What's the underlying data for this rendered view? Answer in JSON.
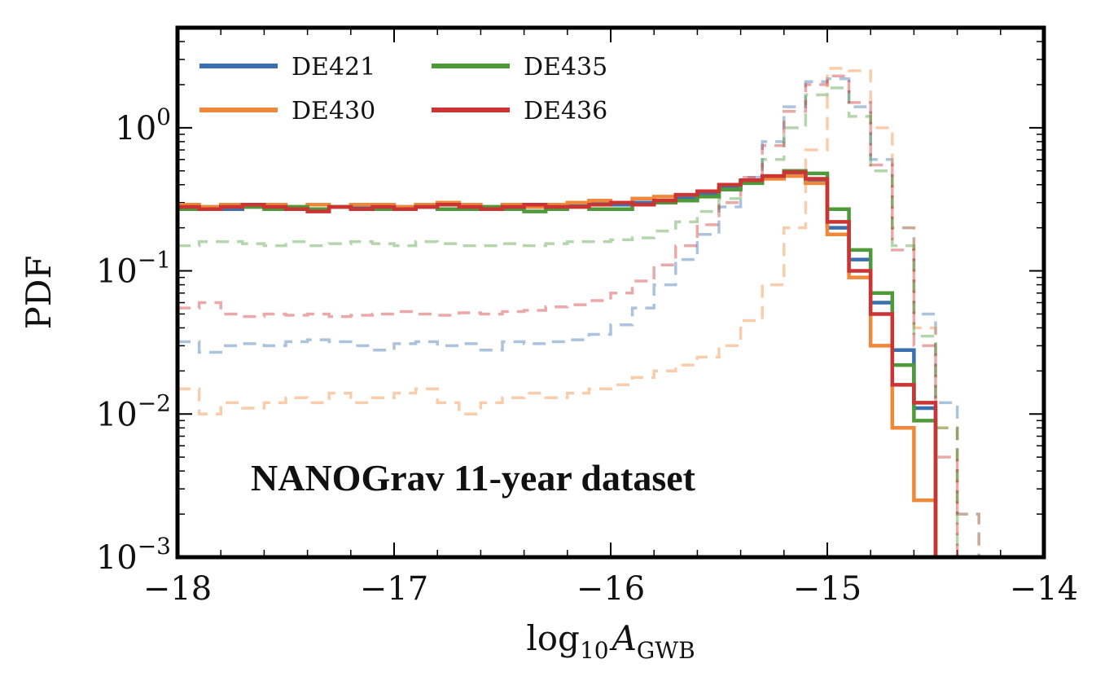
{
  "chart_data": {
    "type": "line",
    "xlabel": "log",
    "xlabel_sub": "10",
    "xlabel_var": "A",
    "xlabel_var_sub": "GWB",
    "ylabel": "PDF",
    "xlim": [
      -18,
      -14
    ],
    "ylim": [
      0.001,
      5
    ],
    "yscale": "log",
    "xticks": [
      -18,
      -17,
      -16,
      -15,
      -14
    ],
    "xtick_labels": [
      "−18",
      "−17",
      "−16",
      "−15",
      "−14"
    ],
    "yticks": [
      {
        "value": 1,
        "base": "10",
        "exp": "0"
      },
      {
        "value": 0.1,
        "base": "10",
        "exp": "−1"
      },
      {
        "value": 0.01,
        "base": "10",
        "exp": "−2"
      },
      {
        "value": 0.001,
        "base": "10",
        "exp": "−3"
      }
    ],
    "annotation": "NANOGrav 11-year dataset",
    "legend_position": "top-left",
    "grid": false,
    "bin_width": 0.1,
    "series": [
      {
        "name": "DE421",
        "color": "#3a6fb0",
        "style": "solid",
        "x": [
          -18.0,
          -17.9,
          -17.8,
          -17.7,
          -17.6,
          -17.5,
          -17.4,
          -17.3,
          -17.2,
          -17.1,
          -17.0,
          -16.9,
          -16.8,
          -16.7,
          -16.6,
          -16.5,
          -16.4,
          -16.3,
          -16.2,
          -16.1,
          -16.0,
          -15.9,
          -15.8,
          -15.7,
          -15.6,
          -15.5,
          -15.4,
          -15.3,
          -15.2,
          -15.1,
          -15.0,
          -14.9,
          -14.8,
          -14.7,
          -14.6,
          -14.5
        ],
        "y": [
          0.28,
          0.28,
          0.27,
          0.28,
          0.28,
          0.28,
          0.27,
          0.28,
          0.28,
          0.27,
          0.28,
          0.28,
          0.27,
          0.28,
          0.28,
          0.28,
          0.28,
          0.29,
          0.29,
          0.3,
          0.29,
          0.3,
          0.31,
          0.32,
          0.34,
          0.38,
          0.42,
          0.45,
          0.48,
          0.42,
          0.2,
          0.12,
          0.06,
          0.028,
          0.011,
          0.001
        ]
      },
      {
        "name": "DE430",
        "color": "#f0883a",
        "style": "solid",
        "x": [
          -18.0,
          -17.9,
          -17.8,
          -17.7,
          -17.6,
          -17.5,
          -17.4,
          -17.3,
          -17.2,
          -17.1,
          -17.0,
          -16.9,
          -16.8,
          -16.7,
          -16.6,
          -16.5,
          -16.4,
          -16.3,
          -16.2,
          -16.1,
          -16.0,
          -15.9,
          -15.8,
          -15.7,
          -15.6,
          -15.5,
          -15.4,
          -15.3,
          -15.2,
          -15.1,
          -15.0,
          -14.9,
          -14.8,
          -14.7,
          -14.6,
          -14.5
        ],
        "y": [
          0.29,
          0.28,
          0.29,
          0.28,
          0.29,
          0.28,
          0.29,
          0.28,
          0.29,
          0.29,
          0.28,
          0.29,
          0.3,
          0.29,
          0.28,
          0.29,
          0.28,
          0.29,
          0.3,
          0.31,
          0.3,
          0.32,
          0.33,
          0.34,
          0.36,
          0.4,
          0.42,
          0.44,
          0.46,
          0.41,
          0.18,
          0.09,
          0.03,
          0.008,
          0.0025,
          0.001
        ]
      },
      {
        "name": "DE435",
        "color": "#4e9a3a",
        "style": "solid",
        "x": [
          -18.0,
          -17.9,
          -17.8,
          -17.7,
          -17.6,
          -17.5,
          -17.4,
          -17.3,
          -17.2,
          -17.1,
          -17.0,
          -16.9,
          -16.8,
          -16.7,
          -16.6,
          -16.5,
          -16.4,
          -16.3,
          -16.2,
          -16.1,
          -16.0,
          -15.9,
          -15.8,
          -15.7,
          -15.6,
          -15.5,
          -15.4,
          -15.3,
          -15.2,
          -15.1,
          -15.0,
          -14.9,
          -14.8,
          -14.7,
          -14.6,
          -14.5
        ],
        "y": [
          0.27,
          0.27,
          0.28,
          0.28,
          0.27,
          0.28,
          0.27,
          0.28,
          0.27,
          0.27,
          0.27,
          0.28,
          0.27,
          0.27,
          0.28,
          0.27,
          0.26,
          0.27,
          0.28,
          0.27,
          0.27,
          0.29,
          0.3,
          0.31,
          0.33,
          0.37,
          0.41,
          0.46,
          0.5,
          0.48,
          0.27,
          0.14,
          0.07,
          0.022,
          0.009,
          0.001
        ]
      },
      {
        "name": "DE436",
        "color": "#cc3333",
        "style": "solid",
        "x": [
          -18.0,
          -17.9,
          -17.8,
          -17.7,
          -17.6,
          -17.5,
          -17.4,
          -17.3,
          -17.2,
          -17.1,
          -17.0,
          -16.9,
          -16.8,
          -16.7,
          -16.6,
          -16.5,
          -16.4,
          -16.3,
          -16.2,
          -16.1,
          -16.0,
          -15.9,
          -15.8,
          -15.7,
          -15.6,
          -15.5,
          -15.4,
          -15.3,
          -15.2,
          -15.1,
          -15.0,
          -14.9,
          -14.8,
          -14.7,
          -14.6,
          -14.5
        ],
        "y": [
          0.28,
          0.27,
          0.28,
          0.29,
          0.28,
          0.27,
          0.26,
          0.28,
          0.27,
          0.28,
          0.27,
          0.28,
          0.29,
          0.28,
          0.27,
          0.28,
          0.29,
          0.28,
          0.28,
          0.29,
          0.3,
          0.29,
          0.31,
          0.34,
          0.36,
          0.4,
          0.43,
          0.46,
          0.49,
          0.44,
          0.22,
          0.1,
          0.05,
          0.016,
          0.012,
          0.001
        ]
      },
      {
        "name": "",
        "color": "#3a6fb0",
        "style": "dashed",
        "x": [
          -18.0,
          -17.9,
          -17.8,
          -17.7,
          -17.6,
          -17.5,
          -17.4,
          -17.3,
          -17.2,
          -17.1,
          -17.0,
          -16.9,
          -16.8,
          -16.7,
          -16.6,
          -16.5,
          -16.4,
          -16.3,
          -16.2,
          -16.1,
          -16.0,
          -15.9,
          -15.8,
          -15.7,
          -15.6,
          -15.5,
          -15.4,
          -15.3,
          -15.2,
          -15.1,
          -15.0,
          -14.9,
          -14.8,
          -14.7,
          -14.6,
          -14.5,
          -14.4
        ],
        "y": [
          0.032,
          0.027,
          0.03,
          0.031,
          0.03,
          0.032,
          0.033,
          0.032,
          0.03,
          0.028,
          0.031,
          0.032,
          0.03,
          0.031,
          0.028,
          0.032,
          0.031,
          0.032,
          0.033,
          0.036,
          0.042,
          0.055,
          0.08,
          0.12,
          0.18,
          0.28,
          0.45,
          0.8,
          1.4,
          2.1,
          2.2,
          1.4,
          0.6,
          0.2,
          0.05,
          0.012,
          0.002
        ]
      },
      {
        "name": "",
        "color": "#f0883a",
        "style": "dashed",
        "x": [
          -18.0,
          -17.9,
          -17.8,
          -17.7,
          -17.6,
          -17.5,
          -17.4,
          -17.3,
          -17.2,
          -17.1,
          -17.0,
          -16.9,
          -16.8,
          -16.7,
          -16.6,
          -16.5,
          -16.4,
          -16.3,
          -16.2,
          -16.1,
          -16.0,
          -15.9,
          -15.8,
          -15.7,
          -15.6,
          -15.5,
          -15.4,
          -15.3,
          -15.2,
          -15.1,
          -15.0,
          -14.9,
          -14.8,
          -14.7,
          -14.6,
          -14.5,
          -14.4
        ],
        "y": [
          0.015,
          0.01,
          0.012,
          0.011,
          0.012,
          0.013,
          0.012,
          0.014,
          0.012,
          0.013,
          0.014,
          0.015,
          0.012,
          0.01,
          0.012,
          0.013,
          0.014,
          0.013,
          0.014,
          0.015,
          0.016,
          0.018,
          0.02,
          0.022,
          0.025,
          0.03,
          0.045,
          0.08,
          0.2,
          0.7,
          2.6,
          2.5,
          1.0,
          0.2,
          0.04,
          0.008,
          0.002
        ]
      },
      {
        "name": "",
        "color": "#4e9a3a",
        "style": "dashed",
        "x": [
          -18.0,
          -17.9,
          -17.8,
          -17.7,
          -17.6,
          -17.5,
          -17.4,
          -17.3,
          -17.2,
          -17.1,
          -17.0,
          -16.9,
          -16.8,
          -16.7,
          -16.6,
          -16.5,
          -16.4,
          -16.3,
          -16.2,
          -16.1,
          -16.0,
          -15.9,
          -15.8,
          -15.7,
          -15.6,
          -15.5,
          -15.4,
          -15.3,
          -15.2,
          -15.1,
          -15.0,
          -14.9,
          -14.8,
          -14.7,
          -14.6,
          -14.5,
          -14.4
        ],
        "y": [
          0.15,
          0.16,
          0.16,
          0.155,
          0.15,
          0.16,
          0.15,
          0.155,
          0.16,
          0.155,
          0.15,
          0.16,
          0.155,
          0.15,
          0.15,
          0.155,
          0.15,
          0.155,
          0.16,
          0.16,
          0.165,
          0.17,
          0.19,
          0.22,
          0.26,
          0.32,
          0.42,
          0.6,
          1.0,
          1.7,
          1.9,
          1.2,
          0.5,
          0.15,
          0.035,
          0.008,
          0.001
        ]
      },
      {
        "name": "",
        "color": "#cc3333",
        "style": "dashed",
        "x": [
          -18.0,
          -17.9,
          -17.8,
          -17.7,
          -17.6,
          -17.5,
          -17.4,
          -17.3,
          -17.2,
          -17.1,
          -17.0,
          -16.9,
          -16.8,
          -16.7,
          -16.6,
          -16.5,
          -16.4,
          -16.3,
          -16.2,
          -16.1,
          -16.0,
          -15.9,
          -15.8,
          -15.7,
          -15.6,
          -15.5,
          -15.4,
          -15.3,
          -15.2,
          -15.1,
          -15.0,
          -14.9,
          -14.8,
          -14.7,
          -14.6,
          -14.5,
          -14.4
        ],
        "y": [
          0.055,
          0.06,
          0.05,
          0.048,
          0.05,
          0.049,
          0.05,
          0.048,
          0.049,
          0.05,
          0.052,
          0.05,
          0.049,
          0.051,
          0.05,
          0.052,
          0.053,
          0.056,
          0.058,
          0.062,
          0.07,
          0.085,
          0.11,
          0.15,
          0.21,
          0.3,
          0.45,
          0.75,
          1.3,
          2.0,
          2.3,
          1.5,
          0.55,
          0.14,
          0.03,
          0.005,
          0.001
        ]
      }
    ]
  }
}
